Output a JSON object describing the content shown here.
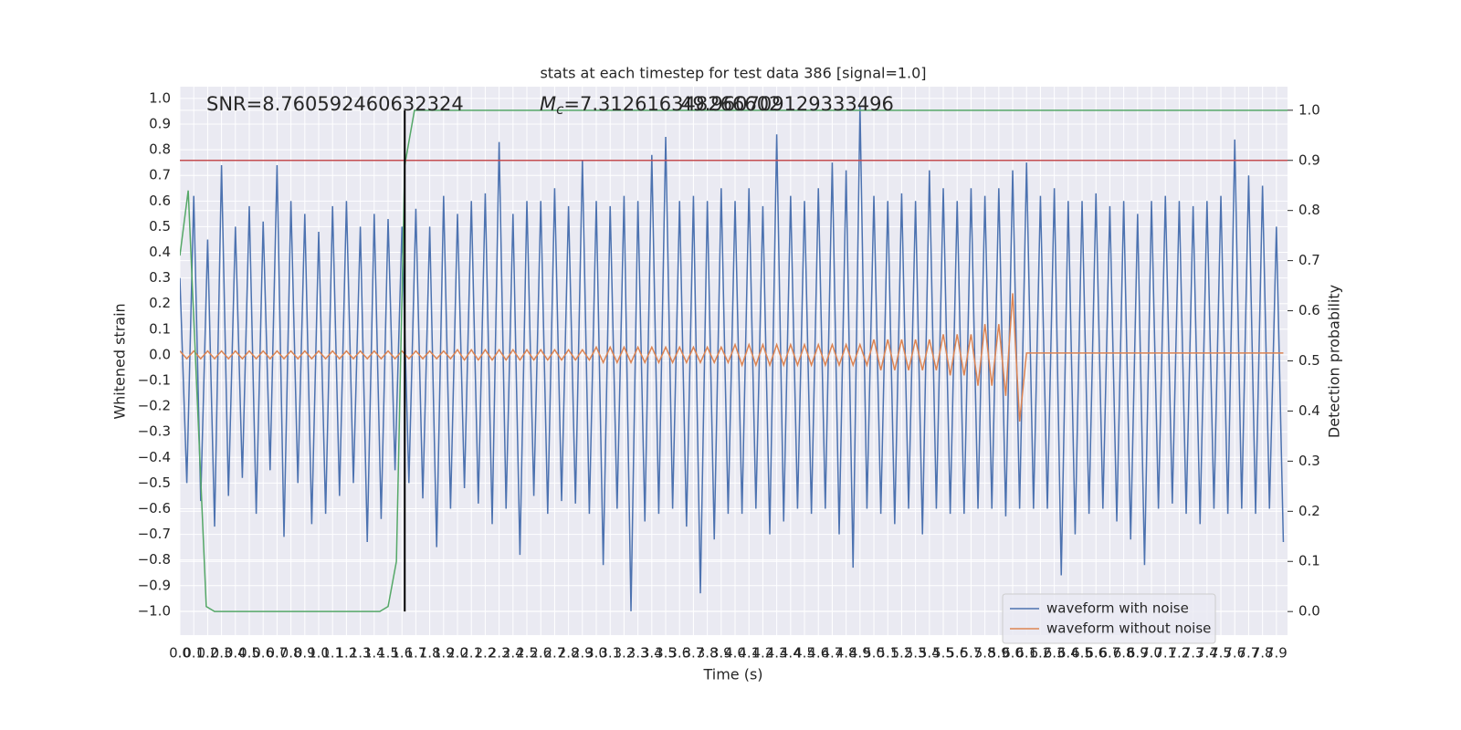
{
  "chart_data": {
    "type": "line",
    "title": "stats at each timestep for test data 386 [signal=1.0]",
    "xlabel": "Time (s)",
    "ylabel": "Whitened strain",
    "y2label": "Detection probability",
    "annotations": [
      {
        "text": "SNR=8.760592460632324"
      },
      {
        "symbol": "M",
        "subscript": "c",
        "text": "=7.312616348266602"
      },
      {
        "text": "49.960709129333496"
      }
    ],
    "legend": "lower right",
    "grid": true,
    "xlim": [
      0,
      7.98
    ],
    "ylim": [
      -1.093,
      1.046
    ],
    "y2lim": [
      -0.047,
      1.047
    ],
    "xticks": [
      {
        "value": 0,
        "label": "0.0"
      },
      0.1,
      0.2,
      0.3,
      0.4,
      0.5,
      0.6,
      0.7,
      0.8,
      0.9,
      {
        "value": 1,
        "label": "1.0"
      },
      1.1,
      1.2,
      1.3,
      1.4,
      1.5,
      1.6,
      1.7,
      1.8,
      1.9,
      {
        "value": 2,
        "label": "2.0"
      },
      2.1,
      2.2,
      2.3,
      2.4,
      2.5,
      2.6,
      2.7,
      2.8,
      2.9,
      {
        "value": 3,
        "label": "3.0"
      },
      3.1,
      3.2,
      3.3,
      3.4,
      3.5,
      3.6,
      3.7,
      3.8,
      3.9,
      {
        "value": 4,
        "label": "4.0"
      },
      4.1,
      4.2,
      4.3,
      4.4,
      4.5,
      4.6,
      4.7,
      4.8,
      4.9,
      {
        "value": 5,
        "label": "5.0"
      },
      5.1,
      5.2,
      5.3,
      5.4,
      5.5,
      5.6,
      5.7,
      5.8,
      5.9,
      {
        "value": 6,
        "label": "6.0"
      },
      6.1,
      6.2,
      6.3,
      6.4,
      6.5,
      6.6,
      6.7,
      6.8,
      6.9,
      {
        "value": 7,
        "label": "7.0"
      },
      7.1,
      7.2,
      7.3,
      7.4,
      7.5,
      7.6,
      7.7,
      7.8,
      7.9
    ],
    "yticks": [
      {
        "value": -1,
        "label": "−1.0"
      },
      {
        "value": -0.9,
        "label": "−0.9"
      },
      {
        "value": -0.8,
        "label": "−0.8"
      },
      {
        "value": -0.7,
        "label": "−0.7"
      },
      {
        "value": -0.6,
        "label": "−0.6"
      },
      {
        "value": -0.5,
        "label": "−0.5"
      },
      {
        "value": -0.4,
        "label": "−0.4"
      },
      {
        "value": -0.3,
        "label": "−0.3"
      },
      {
        "value": -0.2,
        "label": "−0.2"
      },
      {
        "value": -0.1,
        "label": "−0.1"
      },
      {
        "value": 0,
        "label": "0.0"
      },
      0.1,
      0.2,
      0.3,
      0.4,
      0.5,
      0.6,
      0.7,
      0.8,
      0.9,
      {
        "value": 1,
        "label": "1.0"
      }
    ],
    "y2ticks": [
      {
        "value": 0,
        "label": "0.0"
      },
      0.1,
      0.2,
      0.3,
      0.4,
      0.5,
      0.6,
      0.7,
      0.8,
      0.9,
      {
        "value": 1,
        "label": "1.0"
      }
    ],
    "x": [
      0,
      0.05,
      0.1,
      0.15,
      0.2,
      0.25,
      0.3,
      0.35,
      0.4,
      0.45,
      0.5,
      0.55,
      0.6,
      0.65,
      0.7,
      0.75,
      0.8,
      0.85,
      0.9,
      0.95,
      1,
      1.05,
      1.1,
      1.15,
      1.2,
      1.25,
      1.3,
      1.35,
      1.4,
      1.45,
      1.5,
      1.55,
      1.6,
      1.65,
      1.7,
      1.75,
      1.8,
      1.85,
      1.9,
      1.95,
      2,
      2.05,
      2.1,
      2.15,
      2.2,
      2.25,
      2.3,
      2.35,
      2.4,
      2.45,
      2.5,
      2.55,
      2.6,
      2.65,
      2.7,
      2.75,
      2.8,
      2.85,
      2.9,
      2.95,
      3,
      3.05,
      3.1,
      3.15,
      3.2,
      3.25,
      3.3,
      3.35,
      3.4,
      3.45,
      3.5,
      3.55,
      3.6,
      3.65,
      3.7,
      3.75,
      3.8,
      3.85,
      3.9,
      3.95,
      4,
      4.05,
      4.1,
      4.15,
      4.2,
      4.25,
      4.3,
      4.35,
      4.4,
      4.45,
      4.5,
      4.55,
      4.6,
      4.65,
      4.7,
      4.75,
      4.8,
      4.85,
      4.9,
      4.95,
      5,
      5.05,
      5.1,
      5.15,
      5.2,
      5.25,
      5.3,
      5.35,
      5.4,
      5.45,
      5.5,
      5.55,
      5.6,
      5.65,
      5.7,
      5.75,
      5.8,
      5.85,
      5.9,
      5.95,
      6,
      6.05,
      6.1,
      6.15,
      6.2,
      6.25,
      6.3,
      6.35,
      6.4,
      6.45,
      6.5,
      6.55,
      6.6,
      6.65,
      6.7,
      6.75,
      6.8,
      6.85,
      6.9,
      6.95,
      7,
      7.05,
      7.1,
      7.15,
      7.2,
      7.25,
      7.3,
      7.35,
      7.4,
      7.45,
      7.5,
      7.55,
      7.6,
      7.65,
      7.7,
      7.75,
      7.8,
      7.85,
      7.9,
      7.95
    ],
    "series": [
      {
        "name": "waveform with noise",
        "color": "#4c72b0",
        "values": [
          0.3,
          -0.5,
          0.62,
          -0.57,
          0.45,
          -0.67,
          0.74,
          -0.55,
          0.5,
          -0.48,
          0.58,
          -0.62,
          0.52,
          -0.45,
          0.74,
          -0.71,
          0.6,
          -0.5,
          0.55,
          -0.66,
          0.48,
          -0.62,
          0.58,
          -0.55,
          0.6,
          -0.5,
          0.5,
          -0.73,
          0.55,
          -0.64,
          0.53,
          -0.45,
          0.5,
          -0.5,
          0.57,
          -0.56,
          0.5,
          -0.75,
          0.62,
          -0.6,
          0.55,
          -0.52,
          0.6,
          -0.58,
          0.63,
          -0.66,
          0.83,
          -0.6,
          0.55,
          -0.78,
          0.6,
          -0.55,
          0.6,
          -0.62,
          0.65,
          -0.57,
          0.58,
          -0.58,
          0.76,
          -0.62,
          0.6,
          -0.82,
          0.58,
          -0.6,
          0.62,
          -1.0,
          0.6,
          -0.65,
          0.78,
          -0.62,
          0.85,
          -0.6,
          0.6,
          -0.67,
          0.62,
          -0.93,
          0.6,
          -0.72,
          0.65,
          -0.62,
          0.6,
          -0.62,
          0.65,
          -0.6,
          0.58,
          -0.7,
          0.86,
          -0.65,
          0.62,
          -0.6,
          0.6,
          -0.62,
          0.65,
          -0.6,
          0.75,
          -0.7,
          0.72,
          -0.83,
          0.97,
          -0.6,
          0.62,
          -0.62,
          0.6,
          -0.66,
          0.63,
          -0.6,
          0.6,
          -0.7,
          0.72,
          -0.6,
          0.65,
          -0.62,
          0.6,
          -0.62,
          0.65,
          -0.6,
          0.62,
          -0.6,
          0.65,
          -0.63,
          0.72,
          -0.6,
          0.75,
          -0.6,
          0.62,
          -0.6,
          0.65,
          -0.86,
          0.6,
          -0.7,
          0.6,
          -0.62,
          0.63,
          -0.6,
          0.58,
          -0.65,
          0.6,
          -0.72,
          0.55,
          -0.82,
          0.6,
          -0.6,
          0.62,
          -0.58,
          0.6,
          -0.62,
          0.58,
          -0.66,
          0.6,
          -0.6,
          0.62,
          -0.62,
          0.84,
          -0.6,
          0.7,
          -0.62,
          0.66,
          -0.6,
          0.5,
          -0.73
        ]
      },
      {
        "name": "waveform without noise",
        "color": "#dd8452",
        "values": [
          0.015,
          -0.015,
          0.015,
          -0.015,
          0.015,
          -0.015,
          0.015,
          -0.015,
          0.015,
          -0.015,
          0.015,
          -0.015,
          0.015,
          -0.015,
          0.015,
          -0.015,
          0.015,
          -0.015,
          0.015,
          -0.015,
          0.015,
          -0.015,
          0.015,
          -0.015,
          0.015,
          -0.015,
          0.015,
          -0.015,
          0.015,
          -0.015,
          0.015,
          -0.015,
          0.015,
          -0.015,
          0.015,
          -0.015,
          0.015,
          -0.015,
          0.015,
          -0.015,
          0.02,
          -0.02,
          0.02,
          -0.02,
          0.02,
          -0.02,
          0.02,
          -0.02,
          0.02,
          -0.02,
          0.02,
          -0.02,
          0.02,
          -0.02,
          0.02,
          -0.02,
          0.02,
          -0.02,
          0.02,
          -0.02,
          0.03,
          -0.03,
          0.03,
          -0.03,
          0.03,
          -0.03,
          0.03,
          -0.03,
          0.03,
          -0.03,
          0.03,
          -0.03,
          0.03,
          -0.03,
          0.03,
          -0.03,
          0.03,
          -0.03,
          0.03,
          -0.03,
          0.04,
          -0.04,
          0.04,
          -0.04,
          0.04,
          -0.04,
          0.04,
          -0.04,
          0.04,
          -0.04,
          0.04,
          -0.04,
          0.04,
          -0.04,
          0.04,
          -0.04,
          0.04,
          -0.04,
          0.04,
          -0.04,
          0.06,
          -0.06,
          0.06,
          -0.06,
          0.06,
          -0.06,
          0.06,
          -0.06,
          0.06,
          -0.06,
          0.08,
          -0.08,
          0.08,
          -0.08,
          0.08,
          -0.12,
          0.12,
          -0.12,
          0.12,
          -0.16,
          0.24,
          -0.26,
          0.007,
          0.007,
          0.007,
          0.007,
          0.007,
          0.007,
          0.007,
          0.007,
          0.007,
          0.007,
          0.007,
          0.007,
          0.007,
          0.007,
          0.007,
          0.007,
          0.007,
          0.007,
          0.007,
          0.007,
          0.007,
          0.007,
          0.007,
          0.007,
          0.007,
          0.007,
          0.007,
          0.007,
          0.007,
          0.007,
          0.007,
          0.007,
          0.007,
          0.007,
          0.007,
          0.007,
          0.007,
          0.007
        ]
      },
      {
        "color": "#55a868",
        "axis": "y2",
        "x": [
          0,
          0.06,
          0.19,
          0.25,
          1.44,
          1.5,
          1.56,
          1.62,
          1.69,
          7.98
        ],
        "values": [
          0.71,
          0.84,
          0.01,
          0,
          0,
          0.01,
          0.1,
          0.89,
          1,
          1
        ]
      }
    ],
    "hlines": [
      {
        "value": 0.9,
        "axis": "y2",
        "color": "#c44e52"
      }
    ],
    "vlines": [
      {
        "value": 1.62,
        "y2range": [
          0,
          1
        ],
        "color": "#000000"
      }
    ]
  }
}
